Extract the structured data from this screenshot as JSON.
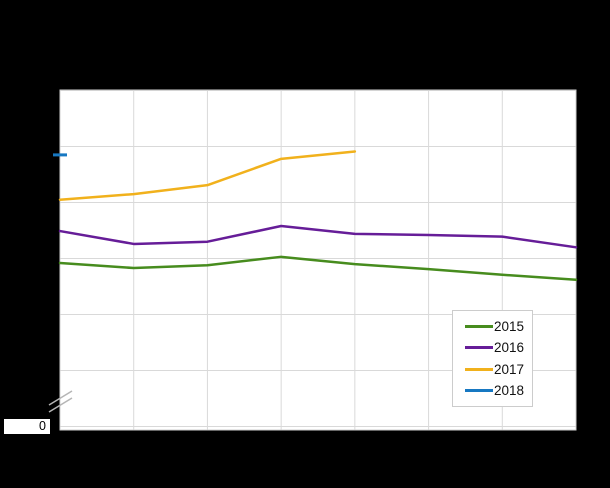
{
  "chart_data": {
    "type": "line",
    "title": "",
    "x_axis": {
      "slots": 8,
      "tick_labels_visible": false,
      "gridlines": true
    },
    "y_axis": {
      "zero_label": "0",
      "axis_break": true,
      "tick_labels_visible": false,
      "gridlines": true,
      "units_per_gridline": 1,
      "range_units": [
        0,
        6
      ]
    },
    "grid_color": "#d9d9d9",
    "plot_border_color": "#cfcfcf",
    "plot_background": "#ffffff",
    "outer_background": "#000000",
    "series": [
      {
        "name": "2015",
        "color": "#478c1e",
        "render": "line",
        "values": [
          2.92,
          2.83,
          2.88,
          3.03,
          2.9,
          2.81,
          2.71,
          2.62
        ]
      },
      {
        "name": "2016",
        "color": "#661d98",
        "render": "line",
        "values": [
          3.49,
          3.26,
          3.3,
          3.58,
          3.44,
          3.42,
          3.39,
          3.2
        ]
      },
      {
        "name": "2017",
        "color": "#f1b11c",
        "render": "line",
        "values": [
          4.05,
          4.15,
          4.31,
          4.78,
          4.91
        ]
      },
      {
        "name": "2018",
        "color": "#1778c2",
        "render": "dash",
        "values": [
          4.85
        ]
      }
    ],
    "legend": {
      "position": "bottom-right",
      "entries": [
        "2015",
        "2016",
        "2017",
        "2018"
      ]
    }
  }
}
